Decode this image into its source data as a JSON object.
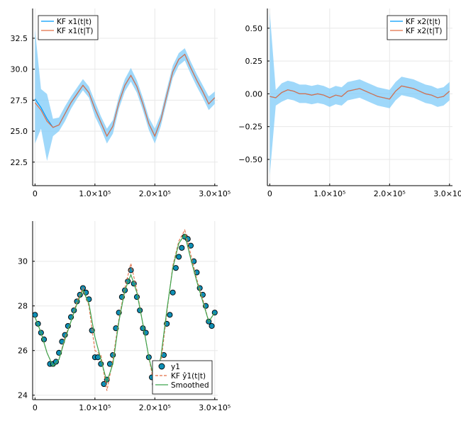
{
  "colors": {
    "blue": "#009af9",
    "band": "#7fcbf8",
    "orange": "#e26f46",
    "green": "#3da44d",
    "marker": "#0e8fb6",
    "grid": "#e8e8e8",
    "axis": "#000000"
  },
  "chart_data": [
    {
      "type": "line",
      "xlim": [
        -4000,
        305000
      ],
      "ylim": [
        20.6,
        34.9
      ],
      "xticks": [
        0,
        100000,
        200000,
        300000
      ],
      "xtick_labels": [
        "0",
        "1.0×10⁵",
        "2.0×10⁵",
        "3.0×10⁵"
      ],
      "yticks": [
        22.5,
        25.0,
        27.5,
        30.0,
        32.5
      ],
      "ytick_labels": [
        "22.5",
        "25.0",
        "27.5",
        "30.0",
        "32.5"
      ],
      "grid": true,
      "legend": "top-left",
      "series": [
        {
          "name": "KF x1(t|t)",
          "x": [
            0,
            10000,
            20000,
            30000,
            40000,
            50000,
            60000,
            70000,
            80000,
            90000,
            100000,
            110000,
            120000,
            130000,
            140000,
            150000,
            160000,
            170000,
            180000,
            190000,
            200000,
            210000,
            220000,
            230000,
            240000,
            250000,
            260000,
            270000,
            280000,
            290000,
            300000
          ],
          "y": [
            27.6,
            26.9,
            26.0,
            25.3,
            25.5,
            26.4,
            27.3,
            28.0,
            28.7,
            28.1,
            26.8,
            25.7,
            24.6,
            25.4,
            27.3,
            28.7,
            29.5,
            28.6,
            27.2,
            25.6,
            24.6,
            25.9,
            27.9,
            29.8,
            30.8,
            31.2,
            30.1,
            29.1,
            28.2,
            27.2,
            27.7
          ],
          "band_lower": [
            24.0,
            25.2,
            22.6,
            24.6,
            25.0,
            25.8,
            26.8,
            27.6,
            28.3,
            27.7,
            26.2,
            25.2,
            24.0,
            24.8,
            26.8,
            28.2,
            29.0,
            28.1,
            26.7,
            25.1,
            24.0,
            25.4,
            27.4,
            29.3,
            30.3,
            30.7,
            29.6,
            28.6,
            27.7,
            26.7,
            27.2
          ],
          "band_upper": [
            33.2,
            28.4,
            28.0,
            26.0,
            26.1,
            27.0,
            27.8,
            28.5,
            29.2,
            28.6,
            27.4,
            26.2,
            25.2,
            25.9,
            27.8,
            29.2,
            30.1,
            29.1,
            27.7,
            26.1,
            25.2,
            26.4,
            28.4,
            30.3,
            31.3,
            31.7,
            30.6,
            29.6,
            28.7,
            27.8,
            28.2
          ]
        },
        {
          "name": "KF x1(t|T)",
          "x": [
            0,
            10000,
            20000,
            30000,
            40000,
            50000,
            60000,
            70000,
            80000,
            90000,
            100000,
            110000,
            120000,
            130000,
            140000,
            150000,
            160000,
            170000,
            180000,
            190000,
            200000,
            210000,
            220000,
            230000,
            240000,
            250000,
            260000,
            270000,
            280000,
            290000,
            300000
          ],
          "y": [
            27.3,
            26.7,
            25.8,
            25.3,
            25.5,
            26.4,
            27.3,
            28.0,
            28.7,
            28.1,
            26.8,
            25.7,
            24.6,
            25.4,
            27.3,
            28.7,
            29.5,
            28.6,
            27.2,
            25.6,
            24.6,
            25.9,
            27.9,
            29.8,
            30.8,
            31.2,
            30.1,
            29.1,
            28.2,
            27.2,
            27.7
          ]
        }
      ]
    },
    {
      "type": "line",
      "xlim": [
        -4000,
        305000
      ],
      "ylim": [
        -0.7,
        0.65
      ],
      "xticks": [
        0,
        100000,
        200000,
        300000
      ],
      "xtick_labels": [
        "0",
        "1.0×10⁵",
        "2.0×10⁵",
        "3.0×10⁵"
      ],
      "yticks": [
        -0.5,
        -0.25,
        0,
        0.25,
        0.5
      ],
      "ytick_labels": [
        "−0.50",
        "−0.25",
        "0.00",
        "0.25",
        "0.50"
      ],
      "grid": true,
      "legend": "top-right",
      "series": [
        {
          "name": "KF x2(t|t)",
          "x": [
            0,
            10000,
            20000,
            30000,
            40000,
            50000,
            60000,
            70000,
            80000,
            90000,
            100000,
            110000,
            120000,
            130000,
            140000,
            150000,
            160000,
            170000,
            180000,
            190000,
            200000,
            210000,
            220000,
            230000,
            240000,
            250000,
            260000,
            270000,
            280000,
            290000,
            300000
          ],
          "y": [
            -0.02,
            -0.03,
            0.01,
            0.03,
            0.02,
            0.0,
            0.0,
            -0.01,
            0.0,
            -0.01,
            -0.03,
            -0.01,
            -0.02,
            0.02,
            0.03,
            0.04,
            0.02,
            0.0,
            -0.02,
            -0.03,
            -0.04,
            0.02,
            0.06,
            0.05,
            0.04,
            0.02,
            0.0,
            -0.01,
            -0.03,
            -0.02,
            0.02
          ],
          "band_lower": [
            -0.62,
            -0.09,
            -0.06,
            -0.04,
            -0.05,
            -0.07,
            -0.07,
            -0.08,
            -0.07,
            -0.08,
            -0.1,
            -0.08,
            -0.09,
            -0.05,
            -0.04,
            -0.03,
            -0.05,
            -0.07,
            -0.09,
            -0.1,
            -0.11,
            -0.05,
            -0.01,
            -0.02,
            -0.03,
            -0.05,
            -0.07,
            -0.08,
            -0.1,
            -0.09,
            -0.05
          ],
          "band_upper": [
            0.62,
            0.03,
            0.08,
            0.1,
            0.09,
            0.07,
            0.07,
            0.06,
            0.07,
            0.06,
            0.04,
            0.06,
            0.05,
            0.09,
            0.1,
            0.11,
            0.09,
            0.07,
            0.05,
            0.04,
            0.03,
            0.09,
            0.13,
            0.12,
            0.11,
            0.09,
            0.07,
            0.06,
            0.04,
            0.05,
            0.09
          ]
        },
        {
          "name": "KF x2(t|T)",
          "x": [
            0,
            10000,
            20000,
            30000,
            40000,
            50000,
            60000,
            70000,
            80000,
            90000,
            100000,
            110000,
            120000,
            130000,
            140000,
            150000,
            160000,
            170000,
            180000,
            190000,
            200000,
            210000,
            220000,
            230000,
            240000,
            250000,
            260000,
            270000,
            280000,
            290000,
            300000
          ],
          "y": [
            -0.02,
            -0.03,
            0.01,
            0.03,
            0.02,
            0.0,
            0.0,
            -0.01,
            0.0,
            -0.01,
            -0.03,
            -0.01,
            -0.02,
            0.02,
            0.03,
            0.04,
            0.02,
            0.0,
            -0.02,
            -0.03,
            -0.04,
            0.02,
            0.06,
            0.05,
            0.04,
            0.02,
            0.0,
            -0.01,
            -0.03,
            -0.02,
            0.02
          ]
        }
      ]
    },
    {
      "type": "scatter",
      "xlim": [
        -4000,
        305000
      ],
      "ylim": [
        23.8,
        31.8
      ],
      "xticks": [
        0,
        100000,
        200000,
        300000
      ],
      "xtick_labels": [
        "0",
        "1.0×10⁵",
        "2.0×10⁵",
        "3.0×10⁵"
      ],
      "yticks": [
        24,
        26,
        28,
        30
      ],
      "ytick_labels": [
        "24",
        "26",
        "28",
        "30"
      ],
      "grid": true,
      "legend": "bottom-right",
      "series": [
        {
          "name": "y1",
          "x": [
            0,
            5000,
            10000,
            15000,
            25000,
            30000,
            35000,
            40000,
            45000,
            50000,
            55000,
            60000,
            65000,
            70000,
            75000,
            80000,
            85000,
            90000,
            95000,
            100000,
            105000,
            110000,
            115000,
            120000,
            125000,
            130000,
            135000,
            140000,
            145000,
            150000,
            155000,
            160000,
            165000,
            170000,
            175000,
            180000,
            185000,
            190000,
            195000,
            200000,
            205000,
            210000,
            215000,
            220000,
            225000,
            230000,
            235000,
            240000,
            245000,
            250000,
            255000,
            260000,
            265000,
            270000,
            275000,
            280000,
            285000,
            290000,
            295000,
            300000
          ],
          "y": [
            27.6,
            27.2,
            26.8,
            26.5,
            25.4,
            25.4,
            25.5,
            25.9,
            26.4,
            26.7,
            27.1,
            27.5,
            27.8,
            28.2,
            28.5,
            28.8,
            28.6,
            28.3,
            26.9,
            25.7,
            25.7,
            25.4,
            24.5,
            24.7,
            25.4,
            25.8,
            27.0,
            27.7,
            28.4,
            28.7,
            29.1,
            29.6,
            29.0,
            28.4,
            27.8,
            27.0,
            26.8,
            25.7,
            24.8,
            24.5,
            25.0,
            25.2,
            25.8,
            27.2,
            27.6,
            28.6,
            29.7,
            30.2,
            30.6,
            31.1,
            31.0,
            30.7,
            30.0,
            29.5,
            28.8,
            28.5,
            28.0,
            27.3,
            27.1,
            27.7
          ]
        },
        {
          "name": "KF ŷ1(t|t)",
          "x": [
            0,
            10000,
            20000,
            30000,
            40000,
            50000,
            60000,
            70000,
            80000,
            90000,
            100000,
            110000,
            120000,
            130000,
            140000,
            150000,
            160000,
            170000,
            180000,
            190000,
            200000,
            210000,
            220000,
            230000,
            240000,
            250000,
            260000,
            270000,
            280000,
            290000,
            300000
          ],
          "y": [
            27.5,
            26.8,
            25.9,
            25.3,
            25.6,
            26.6,
            27.3,
            28.2,
            28.8,
            28.0,
            26.0,
            25.8,
            24.2,
            25.6,
            27.4,
            28.8,
            29.9,
            28.7,
            27.2,
            25.7,
            24.3,
            25.4,
            27.7,
            29.8,
            30.9,
            31.4,
            30.3,
            29.2,
            28.3,
            27.3,
            27.7
          ]
        },
        {
          "name": "Smoothed",
          "x": [
            0,
            10000,
            20000,
            30000,
            40000,
            50000,
            60000,
            70000,
            80000,
            90000,
            100000,
            110000,
            120000,
            130000,
            140000,
            150000,
            160000,
            170000,
            180000,
            190000,
            200000,
            210000,
            220000,
            230000,
            240000,
            250000,
            260000,
            270000,
            280000,
            290000,
            300000
          ],
          "y": [
            27.5,
            26.8,
            25.9,
            25.3,
            25.6,
            26.5,
            27.3,
            28.1,
            28.7,
            28.1,
            26.6,
            25.6,
            24.6,
            25.4,
            27.3,
            28.7,
            29.4,
            28.6,
            27.2,
            25.7,
            24.6,
            25.7,
            27.8,
            29.7,
            30.8,
            31.2,
            30.1,
            29.1,
            28.2,
            27.3,
            27.7
          ]
        }
      ]
    }
  ]
}
